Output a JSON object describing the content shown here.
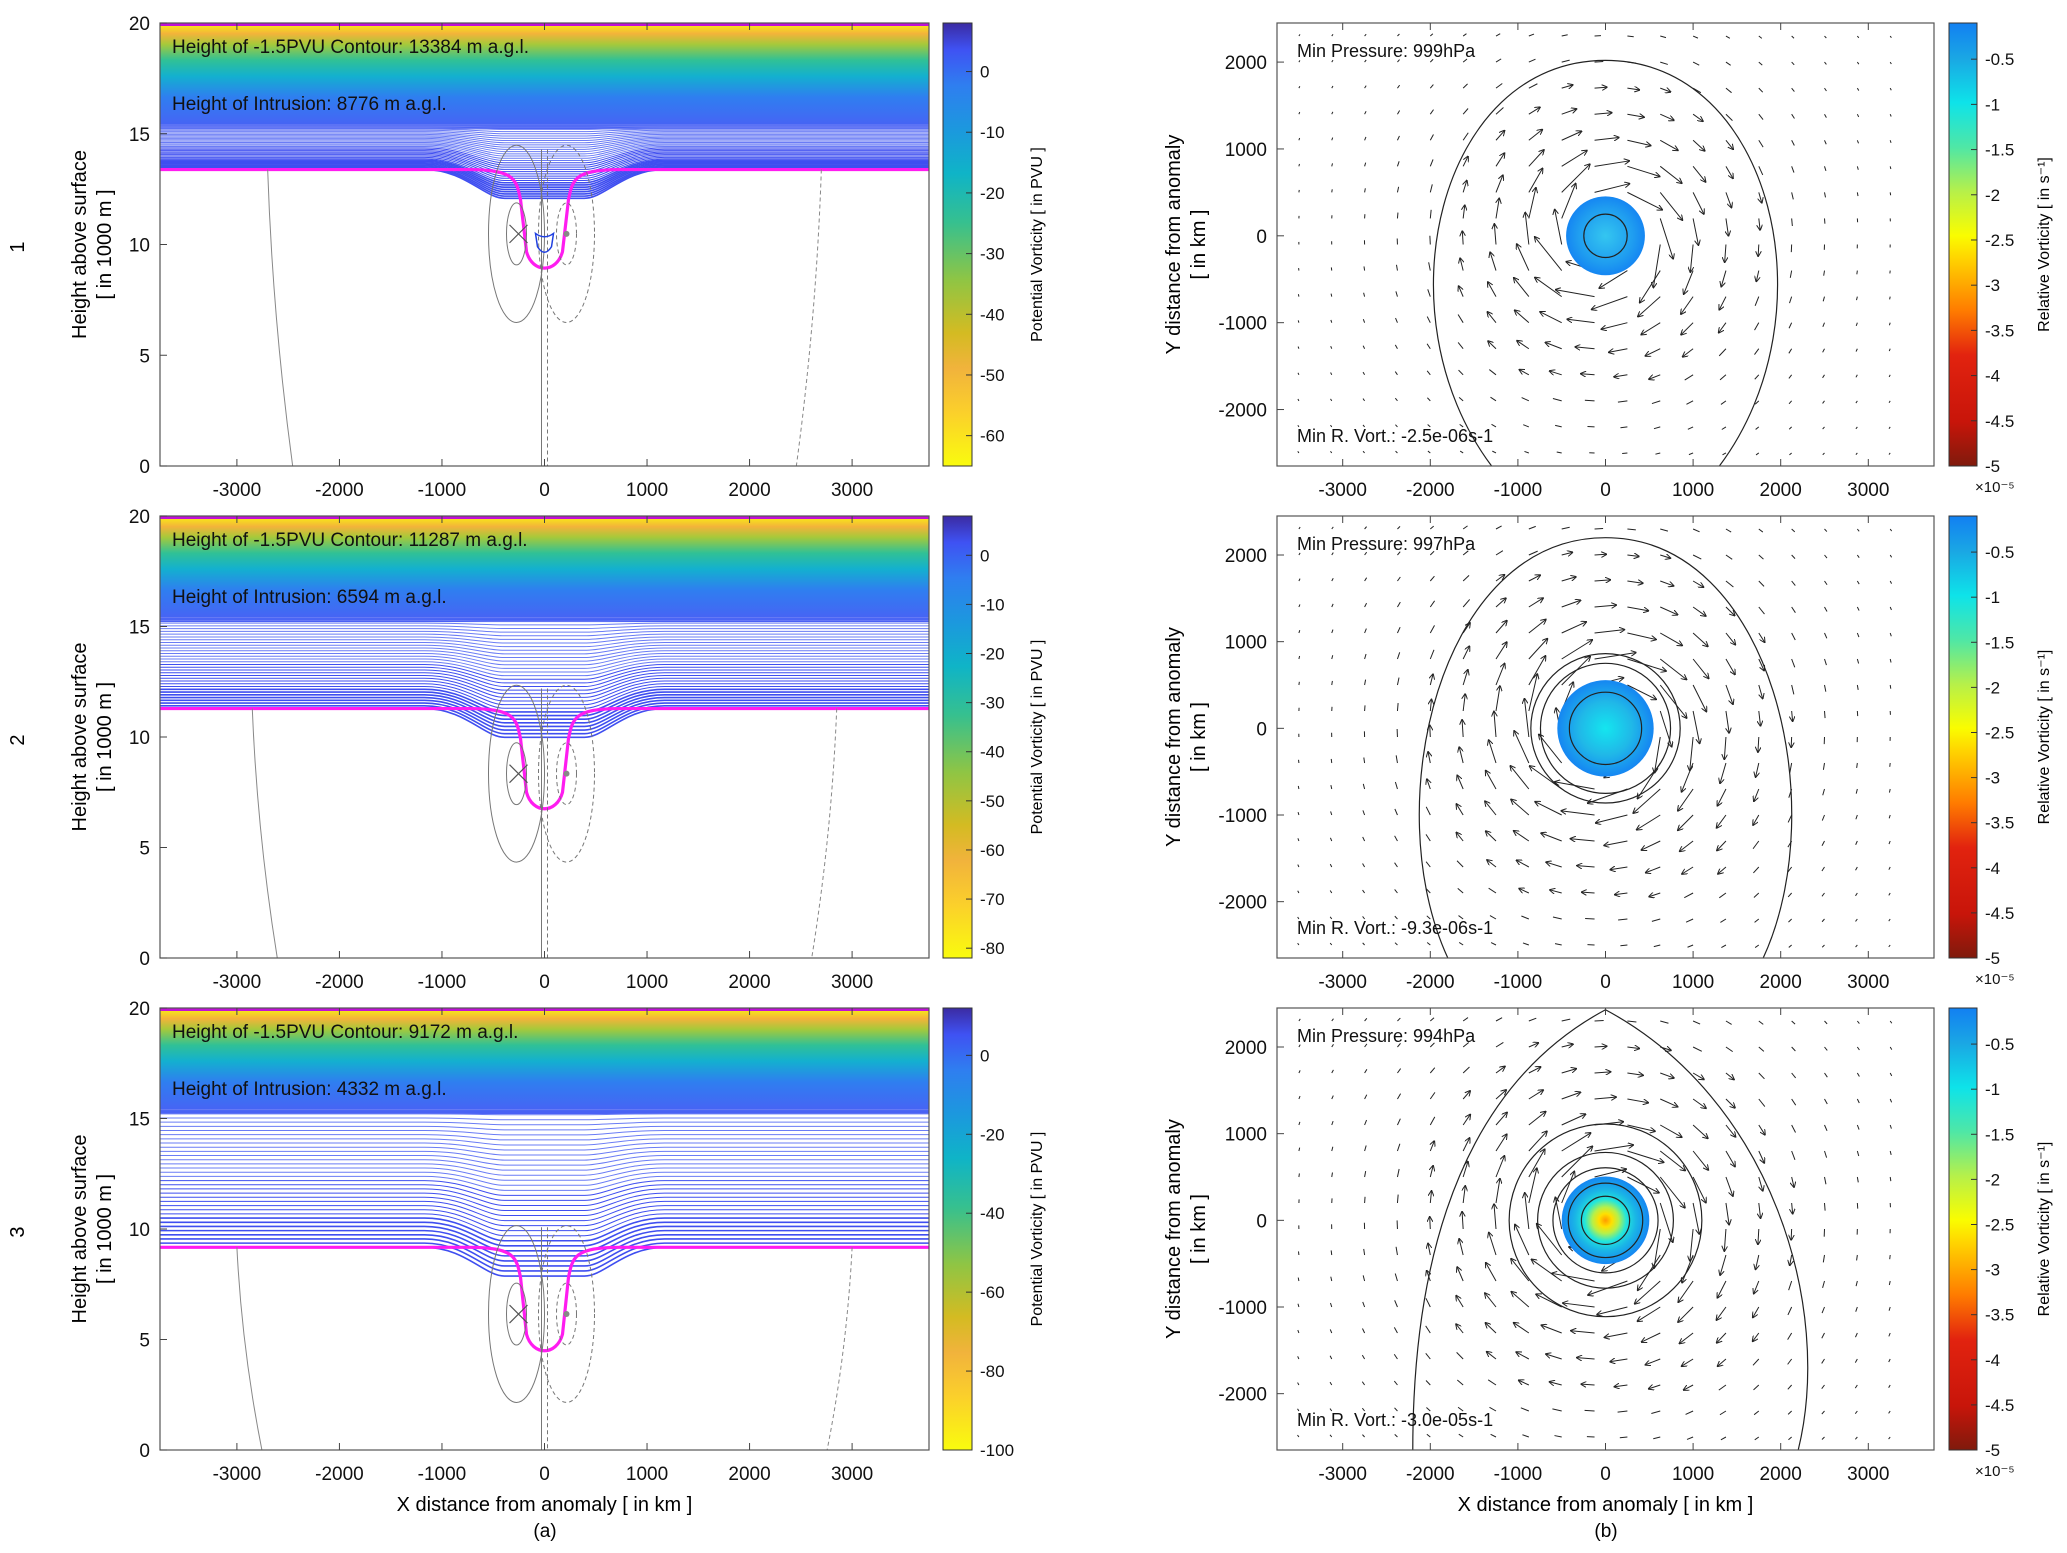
{
  "figure": {
    "row_labels": [
      "1",
      "2",
      "3"
    ],
    "subfigure_labels": [
      "(a)",
      "(b)"
    ]
  },
  "chart_data": [
    {
      "id": "a1",
      "type": "heatmap",
      "row": 1,
      "column": "a",
      "title": "",
      "xlabel": "X distance from anomaly [ in km ]",
      "ylabel": "Height above surface",
      "ylabel2": "[ in 1000 m ]",
      "xlim": [
        -3750,
        3750
      ],
      "ylim": [
        0,
        20
      ],
      "xticks": [
        -3000,
        -2000,
        -1000,
        0,
        1000,
        2000,
        3000
      ],
      "yticks": [
        0,
        5,
        10,
        15,
        20
      ],
      "annotations": [
        "Height of -1.5PVU Contour: 13384 m a.g.l.",
        "Height of Intrusion: 8776 m a.g.l."
      ],
      "contour_height_m": 13384,
      "intrusion_height_m": 8776,
      "colorbar": {
        "label": "Potential Vorticity [ in PVU ]",
        "range": [
          -65,
          8
        ],
        "ticks": [
          0,
          -10,
          -20,
          -30,
          -40,
          -50,
          -60
        ]
      },
      "show_xticklabels": true,
      "show_xlabel": false
    },
    {
      "id": "a2",
      "type": "heatmap",
      "row": 2,
      "column": "a",
      "xlabel": "X distance from anomaly [ in km ]",
      "ylabel": "Height above surface",
      "ylabel2": "[ in 1000 m ]",
      "xlim": [
        -3750,
        3750
      ],
      "ylim": [
        0,
        20
      ],
      "xticks": [
        -3000,
        -2000,
        -1000,
        0,
        1000,
        2000,
        3000
      ],
      "yticks": [
        0,
        5,
        10,
        15,
        20
      ],
      "annotations": [
        "Height of -1.5PVU Contour: 11287 m a.g.l.",
        "Height of Intrusion: 6594 m a.g.l."
      ],
      "contour_height_m": 11287,
      "intrusion_height_m": 6594,
      "colorbar": {
        "label": "Potential Vorticity [ in PVU ]",
        "range": [
          -82,
          8
        ],
        "ticks": [
          0,
          -10,
          -20,
          -30,
          -40,
          -50,
          -60,
          -70,
          -80
        ]
      },
      "show_xticklabels": true,
      "show_xlabel": false
    },
    {
      "id": "a3",
      "type": "heatmap",
      "row": 3,
      "column": "a",
      "xlabel": "X distance from anomaly [ in km ]",
      "ylabel": "Height above surface",
      "ylabel2": "[ in 1000 m ]",
      "xlim": [
        -3750,
        3750
      ],
      "ylim": [
        0,
        20
      ],
      "xticks": [
        -3000,
        -2000,
        -1000,
        0,
        1000,
        2000,
        3000
      ],
      "yticks": [
        0,
        5,
        10,
        15,
        20
      ],
      "annotations": [
        "Height of -1.5PVU Contour: 9172 m a.g.l.",
        "Height of Intrusion: 4332 m a.g.l."
      ],
      "contour_height_m": 9172,
      "intrusion_height_m": 4332,
      "colorbar": {
        "label": "Potential Vorticity [ in PVU ]",
        "range": [
          -100,
          12
        ],
        "ticks": [
          0,
          -20,
          -40,
          -60,
          -80,
          -100
        ]
      },
      "show_xticklabels": true,
      "show_xlabel": true
    },
    {
      "id": "b1",
      "type": "scatter",
      "subtype": "quiver",
      "row": 1,
      "column": "b",
      "xlabel": "X distance from anomaly [ in km ]",
      "ylabel": "Y distance from anomaly",
      "ylabel2": "[ in km ]",
      "xlim": [
        -3750,
        3750
      ],
      "ylim": [
        -2650,
        2450
      ],
      "xticks": [
        -3000,
        -2000,
        -1000,
        0,
        1000,
        2000,
        3000
      ],
      "yticks": [
        -2000,
        -1000,
        0,
        1000,
        2000
      ],
      "annotations": [
        "Min Pressure: 999hPa",
        "Min R. Vort.: -2.5e-06s-1"
      ],
      "min_pressure_hPa": 999,
      "min_relative_vorticity_s-1": -2.5e-06,
      "vortex_radius_km": 450,
      "outer_isobar_top_km": 2020,
      "colorbar": {
        "label": "Relative Vorticity [ in s⁻¹]",
        "range": [
          -5,
          -0.1
        ],
        "ticks": [
          -0.5,
          -1,
          -1.5,
          -2,
          -2.5,
          -3,
          -3.5,
          -4,
          -4.5,
          -5
        ],
        "multiplier": "×10⁻⁵"
      },
      "show_xlabel": false
    },
    {
      "id": "b2",
      "type": "scatter",
      "subtype": "quiver",
      "row": 2,
      "column": "b",
      "xlabel": "X distance from anomaly [ in km ]",
      "ylabel": "Y distance from anomaly",
      "ylabel2": "[ in km ]",
      "xlim": [
        -3750,
        3750
      ],
      "ylim": [
        -2650,
        2450
      ],
      "xticks": [
        -3000,
        -2000,
        -1000,
        0,
        1000,
        2000,
        3000
      ],
      "yticks": [
        -2000,
        -1000,
        0,
        1000,
        2000
      ],
      "annotations": [
        "Min Pressure: 997hPa",
        "Min R. Vort.: -9.3e-06s-1"
      ],
      "min_pressure_hPa": 997,
      "min_relative_vorticity_s-1": -9.3e-06,
      "vortex_radius_km": 550,
      "outer_isobar_top_km": 2200,
      "colorbar": {
        "label": "Relative Vorticity [ in s⁻¹]",
        "range": [
          -5,
          -0.1
        ],
        "ticks": [
          -0.5,
          -1,
          -1.5,
          -2,
          -2.5,
          -3,
          -3.5,
          -4,
          -4.5,
          -5
        ],
        "multiplier": "×10⁻⁵"
      },
      "show_xlabel": false
    },
    {
      "id": "b3",
      "type": "scatter",
      "subtype": "quiver",
      "row": 3,
      "column": "b",
      "xlabel": "X distance from anomaly [ in km ]",
      "ylabel": "Y distance from anomaly",
      "ylabel2": "[ in km ]",
      "xlim": [
        -3750,
        3750
      ],
      "ylim": [
        -2650,
        2450
      ],
      "xticks": [
        -3000,
        -2000,
        -1000,
        0,
        1000,
        2000,
        3000
      ],
      "yticks": [
        -2000,
        -1000,
        0,
        1000,
        2000
      ],
      "annotations": [
        "Min Pressure: 994hPa",
        "Min R. Vort.: -3.0e-05s-1"
      ],
      "min_pressure_hPa": 994,
      "min_relative_vorticity_s-1": -3e-05,
      "vortex_radius_km": 500,
      "outer_isobar_top_km": 2430,
      "colorbar": {
        "label": "Relative Vorticity [ in s⁻¹]",
        "range": [
          -5,
          -0.1
        ],
        "ticks": [
          -0.5,
          -1,
          -1.5,
          -2,
          -2.5,
          -3,
          -3.5,
          -4,
          -4.5,
          -5
        ],
        "multiplier": "×10⁻⁵"
      },
      "show_xlabel": true
    }
  ]
}
